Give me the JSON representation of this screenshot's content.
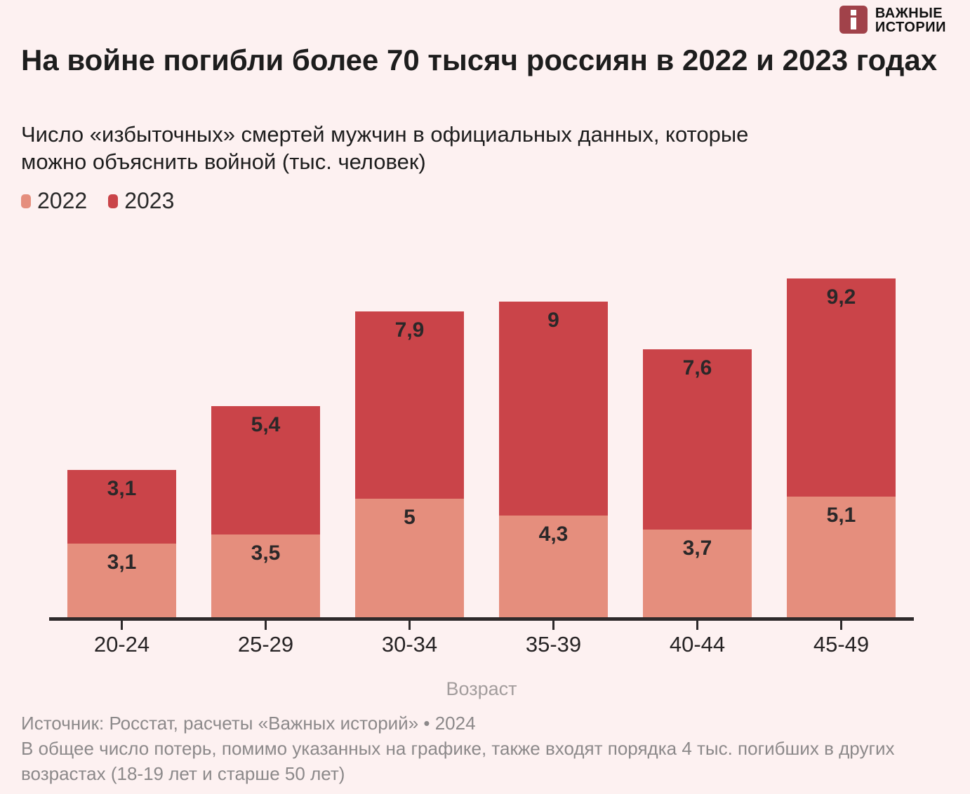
{
  "brand": {
    "line1": "ВАЖНЫЕ",
    "line2": "ИСТОРИИ",
    "icon_color": "#a1424a"
  },
  "header": {
    "title": "На войне погибли более 70 тысяч россиян в 2022 и 2023 годах",
    "subtitle": "Число «избыточных» смертей мужчин в официальных данных, которые можно объяснить войной (тыс. человек)"
  },
  "legend": [
    {
      "label": "2022",
      "color": "#e58e7d"
    },
    {
      "label": "2023",
      "color": "#ca4449"
    }
  ],
  "chart_data": {
    "type": "bar",
    "stacked": true,
    "categories": [
      "20-24",
      "25-29",
      "30-34",
      "35-39",
      "40-44",
      "45-49"
    ],
    "series": [
      {
        "name": "2022",
        "color": "#e58e7d",
        "values": [
          3.1,
          3.5,
          5,
          4.3,
          3.7,
          5.1
        ],
        "display_labels": [
          "3,1",
          "3,5",
          "5",
          "4,3",
          "3,7",
          "5,1"
        ]
      },
      {
        "name": "2023",
        "color": "#ca4449",
        "values": [
          3.1,
          5.4,
          7.9,
          9,
          7.6,
          9.2
        ],
        "display_labels": [
          "3,1",
          "5,4",
          "7,9",
          "9",
          "7,6",
          "9,2"
        ]
      }
    ],
    "xlabel": "Возраст",
    "ylabel": "",
    "ylim": [
      0,
      15.4
    ],
    "grid": false,
    "legend_position": "top-left",
    "value_labels": "inside-top",
    "units": "тыс. человек"
  },
  "footer": {
    "source": "Источник: Росстат, расчеты «Важных историй» • 2024",
    "note": "В общее число потерь, помимо указанных на графике, также входят порядка 4 тыс. погибших в других возрастах (18-19 лет и старше 50 лет)"
  }
}
